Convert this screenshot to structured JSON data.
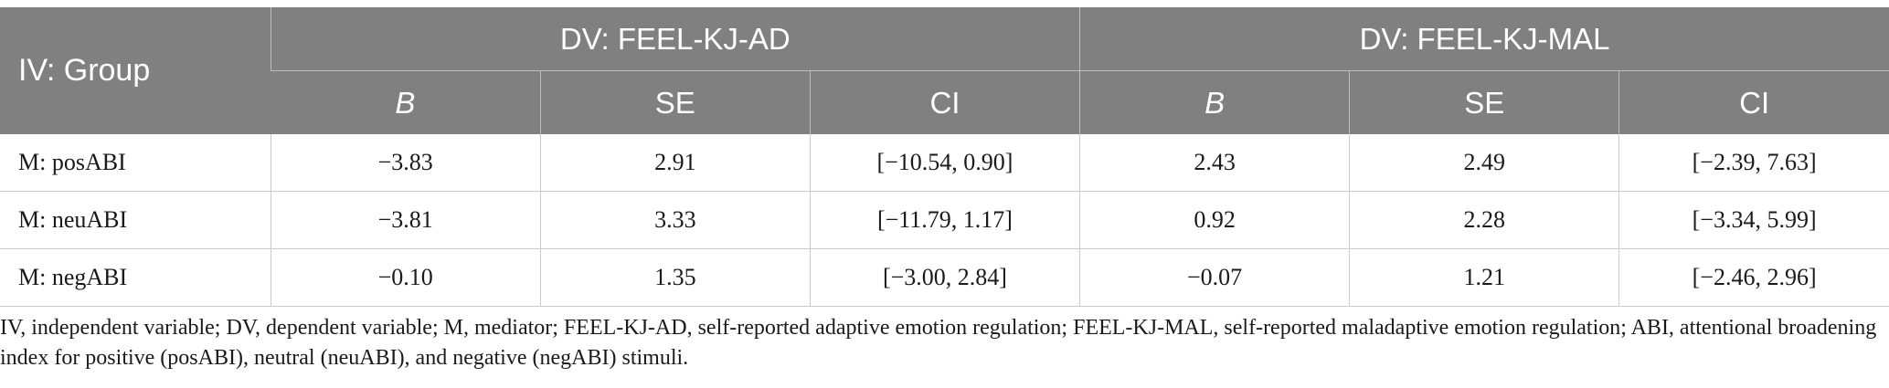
{
  "header": {
    "group_label": "IV: Group",
    "dv1_label": "DV: FEEL-KJ-AD",
    "dv2_label": "DV: FEEL-KJ-MAL",
    "sub_labels": [
      "B",
      "SE",
      "CI",
      "B",
      "SE",
      "CI"
    ]
  },
  "rows": [
    {
      "label": "M: posABI",
      "cells": [
        "−3.83",
        "2.91",
        "[−10.54, 0.90]",
        "2.43",
        "2.49",
        "[−2.39, 7.63]"
      ]
    },
    {
      "label": "M: neuABI",
      "cells": [
        "−3.81",
        "3.33",
        "[−11.79, 1.17]",
        "0.92",
        "2.28",
        "[−3.34, 5.99]"
      ]
    },
    {
      "label": "M: negABI",
      "cells": [
        "−0.10",
        "1.35",
        "[−3.00, 2.84]",
        "−0.07",
        "1.21",
        "[−2.46, 2.96]"
      ]
    }
  ],
  "footnote": "IV, independent variable; DV, dependent variable; M, mediator; FEEL-KJ-AD, self-reported adaptive emotion regulation; FEEL-KJ-MAL, self-reported maladaptive emotion regulation; ABI, attentional broadening index for positive (posABI), neutral (neuABI), and negative (negABI) stimuli."
}
